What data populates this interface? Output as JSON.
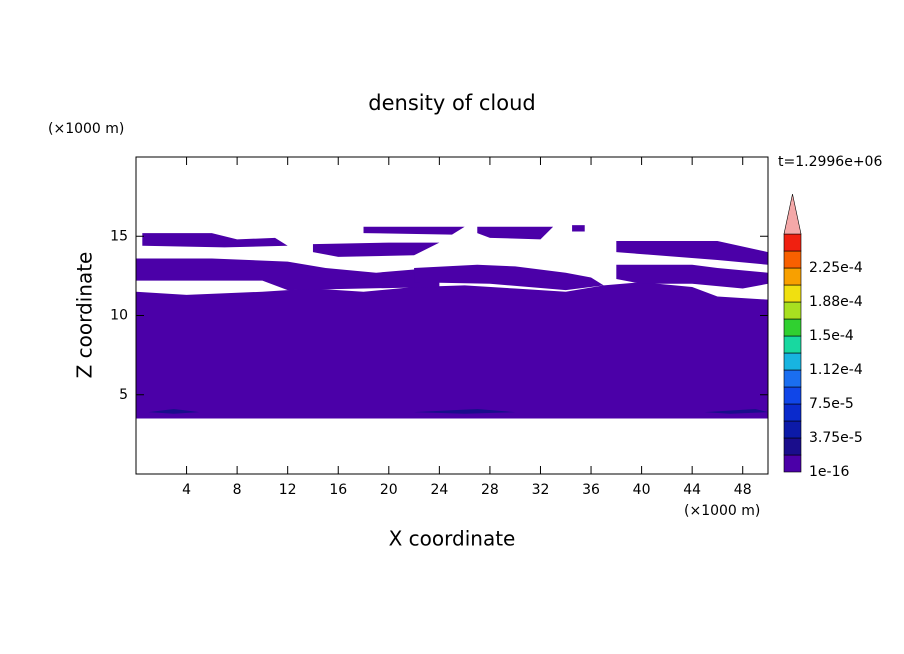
{
  "chart_data": {
    "type": "contour",
    "title": "density of cloud",
    "x_label": "X coordinate",
    "y_label": "Z coordinate",
    "x_unit": "(×1000 m)",
    "y_unit": "(×1000 m)",
    "annotation": "t=1.2996e+06",
    "xlim": [
      0,
      50
    ],
    "ylim": [
      0,
      20
    ],
    "xticks": [
      4,
      8,
      12,
      16,
      20,
      24,
      28,
      32,
      36,
      40,
      44,
      48
    ],
    "yticks": [
      5,
      10,
      15
    ],
    "colorbar": {
      "colors": [
        "#4b00a8",
        "#1a0d8c",
        "#0c1aa8",
        "#0a2acc",
        "#1046e8",
        "#1a6ef0",
        "#18b4e0",
        "#18d8a0",
        "#30d030",
        "#a8e020",
        "#f0e010",
        "#f8a000",
        "#f86000",
        "#f02010"
      ],
      "extend_color": "#f4a8a8",
      "ticks": [
        {
          "value": 1e-16,
          "label": "1e-16"
        },
        {
          "value": 3.75e-05,
          "label": "3.75e-5"
        },
        {
          "value": 7.5e-05,
          "label": "7.5e-5"
        },
        {
          "value": 0.000112,
          "label": "1.12e-4"
        },
        {
          "value": 0.00015,
          "label": "1.5e-4"
        },
        {
          "value": 0.000188,
          "label": "1.88e-4"
        },
        {
          "value": 0.000225,
          "label": "2.25e-4"
        }
      ]
    },
    "regions": [
      {
        "level": 0,
        "points": [
          [
            0,
            3.5
          ],
          [
            50,
            3.5
          ],
          [
            50,
            11
          ],
          [
            46,
            11.2
          ],
          [
            44,
            11.8
          ],
          [
            40,
            12.1
          ],
          [
            37,
            11.9
          ],
          [
            34,
            11.5
          ],
          [
            30,
            11.7
          ],
          [
            26,
            11.9
          ],
          [
            22,
            11.8
          ],
          [
            18,
            11.5
          ],
          [
            14,
            11.7
          ],
          [
            10,
            11.5
          ],
          [
            4,
            11.3
          ],
          [
            0,
            11.5
          ]
        ]
      },
      {
        "level": 0,
        "points": [
          [
            0,
            12.2
          ],
          [
            0,
            13.6
          ],
          [
            6,
            13.6
          ],
          [
            12,
            13.4
          ],
          [
            15,
            13
          ],
          [
            19,
            12.7
          ],
          [
            22,
            12.9
          ],
          [
            24,
            12.5
          ],
          [
            24,
            11.8
          ],
          [
            12,
            11.6
          ],
          [
            10,
            12.2
          ]
        ]
      },
      {
        "level": 0,
        "points": [
          [
            22,
            13
          ],
          [
            27,
            13.2
          ],
          [
            30,
            13.1
          ],
          [
            34,
            12.7
          ],
          [
            36,
            12.4
          ],
          [
            37,
            11.9
          ],
          [
            34,
            11.6
          ],
          [
            28,
            12
          ],
          [
            22,
            12.1
          ]
        ]
      },
      {
        "level": 0,
        "points": [
          [
            38,
            12.3
          ],
          [
            38,
            13.2
          ],
          [
            44,
            13.2
          ],
          [
            46,
            13
          ],
          [
            50,
            12.7
          ],
          [
            50,
            12
          ],
          [
            48,
            11.7
          ],
          [
            44,
            12
          ],
          [
            40,
            12
          ]
        ]
      },
      {
        "level": 0,
        "points": [
          [
            0.5,
            14.4
          ],
          [
            0.5,
            15.2
          ],
          [
            6,
            15.2
          ],
          [
            8,
            14.8
          ],
          [
            11,
            14.9
          ],
          [
            12,
            14.4
          ],
          [
            7,
            14.3
          ]
        ]
      },
      {
        "level": 0,
        "points": [
          [
            14,
            14
          ],
          [
            14,
            14.5
          ],
          [
            20,
            14.6
          ],
          [
            24,
            14.6
          ],
          [
            22,
            13.8
          ],
          [
            16,
            13.7
          ]
        ]
      },
      {
        "level": 0,
        "points": [
          [
            18,
            15.2
          ],
          [
            18,
            15.6
          ],
          [
            26,
            15.6
          ],
          [
            25,
            15.1
          ]
        ]
      },
      {
        "level": 0,
        "points": [
          [
            27,
            15.2
          ],
          [
            27,
            15.6
          ],
          [
            33,
            15.6
          ],
          [
            32,
            14.8
          ],
          [
            28,
            14.9
          ]
        ]
      },
      {
        "level": 0,
        "points": [
          [
            38,
            14
          ],
          [
            38,
            14.7
          ],
          [
            46,
            14.7
          ],
          [
            50,
            14
          ],
          [
            50,
            13.2
          ],
          [
            46,
            13.5
          ]
        ]
      },
      {
        "level": 0,
        "points": [
          [
            34.5,
            15.3
          ],
          [
            34.5,
            15.7
          ],
          [
            35.5,
            15.7
          ],
          [
            35.5,
            15.3
          ]
        ]
      },
      {
        "level": 1,
        "points": [
          [
            1,
            3.9
          ],
          [
            3,
            4.1
          ],
          [
            5,
            3.9
          ],
          [
            3,
            3.8
          ]
        ]
      },
      {
        "level": 1,
        "points": [
          [
            22,
            3.9
          ],
          [
            27,
            4.1
          ],
          [
            30,
            3.9
          ],
          [
            26,
            3.8
          ]
        ]
      },
      {
        "level": 1,
        "points": [
          [
            45,
            3.9
          ],
          [
            49,
            4.1
          ],
          [
            50,
            3.9
          ],
          [
            47,
            3.8
          ]
        ]
      }
    ]
  }
}
